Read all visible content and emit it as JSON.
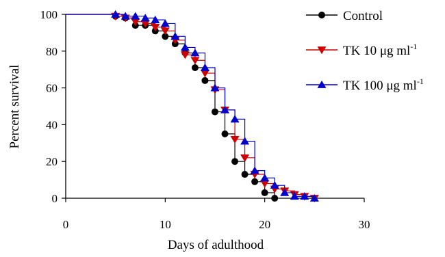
{
  "chart_data": {
    "type": "line",
    "title": "",
    "xlabel": "Days of adulthood",
    "ylabel": "Percent survival",
    "xlim": [
      0,
      30
    ],
    "ylim": [
      0,
      100
    ],
    "xticks": [
      0,
      10,
      20,
      30
    ],
    "yticks": [
      0,
      20,
      40,
      60,
      80,
      100
    ],
    "grid": false,
    "legend_position": "top-right",
    "series": [
      {
        "name": "Control",
        "legend_main": "Control",
        "legend_sup": "",
        "color": "#000000",
        "marker": "circle",
        "x": [
          5,
          6,
          7,
          8,
          9,
          10,
          11,
          12,
          13,
          14,
          15,
          16,
          17,
          18,
          19,
          20,
          21
        ],
        "y": [
          99,
          98,
          94,
          94,
          91,
          88,
          84,
          79,
          71,
          64,
          47,
          35,
          20,
          13,
          9,
          3,
          0
        ]
      },
      {
        "name": "TK 10 μg ml-1",
        "legend_main": "TK 10 μg ml",
        "legend_sup": "-1",
        "color": "#cc0000",
        "marker": "triangle-down",
        "x": [
          5,
          6,
          7,
          8,
          9,
          10,
          11,
          12,
          13,
          14,
          15,
          16,
          17,
          18,
          19,
          20,
          21,
          22,
          23,
          24,
          25
        ],
        "y": [
          99,
          98,
          96,
          95,
          93,
          91,
          86,
          78,
          75,
          68,
          59,
          48,
          32,
          22,
          13,
          8,
          5,
          4,
          2,
          1,
          0
        ]
      },
      {
        "name": "TK 100 μg ml-1",
        "legend_main": "TK 100 μg ml",
        "legend_sup": "-1",
        "color": "#0000cc",
        "marker": "triangle-up",
        "x": [
          5,
          6,
          7,
          8,
          9,
          10,
          11,
          12,
          13,
          14,
          15,
          16,
          17,
          18,
          19,
          20,
          21,
          22,
          23,
          24,
          25
        ],
        "y": [
          100,
          99,
          99,
          98,
          97,
          95,
          88,
          82,
          79,
          71,
          60,
          48,
          43,
          31,
          15,
          11,
          7,
          3,
          1,
          1,
          0
        ]
      }
    ]
  }
}
